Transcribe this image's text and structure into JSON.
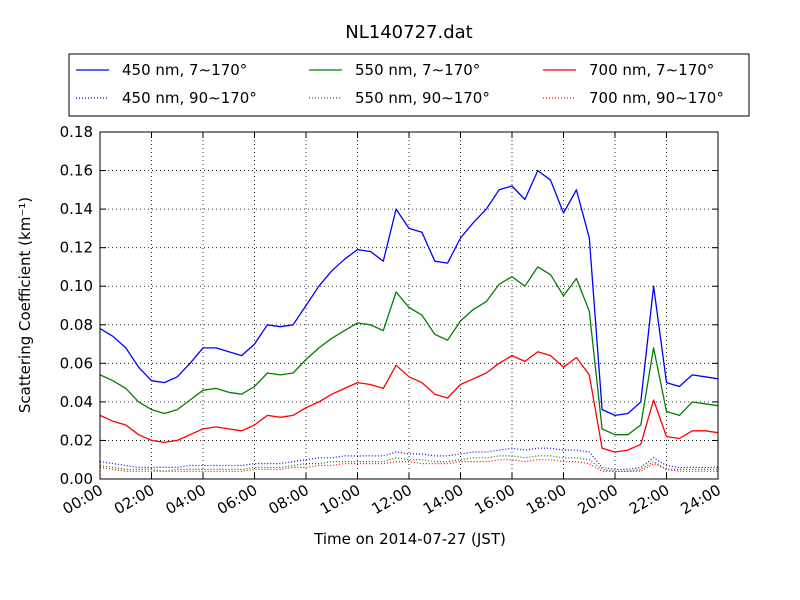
{
  "chart_data": {
    "type": "line",
    "title": "NL140727.dat",
    "xlabel": "Time on 2014-07-27 (JST)",
    "ylabel": "Scattering Coefficient (km⁻¹)",
    "xlim": [
      0,
      24
    ],
    "ylim": [
      0,
      0.18
    ],
    "grid": true,
    "legend_position": "top",
    "x_tick_labels": [
      "00:00",
      "02:00",
      "04:00",
      "06:00",
      "08:00",
      "10:00",
      "12:00",
      "14:00",
      "16:00",
      "18:00",
      "20:00",
      "22:00",
      "24:00"
    ],
    "y_tick_labels": [
      "0.00",
      "0.02",
      "0.04",
      "0.06",
      "0.08",
      "0.10",
      "0.12",
      "0.14",
      "0.16",
      "0.18"
    ],
    "x": [
      0,
      0.5,
      1,
      1.5,
      2,
      2.5,
      3,
      3.5,
      4,
      4.5,
      5,
      5.5,
      6,
      6.5,
      7,
      7.5,
      8,
      8.5,
      9,
      9.5,
      10,
      10.5,
      11,
      11.5,
      12,
      12.5,
      13,
      13.5,
      14,
      14.5,
      15,
      15.5,
      16,
      16.5,
      17,
      17.5,
      18,
      18.5,
      19,
      19.5,
      20,
      20.5,
      21,
      21.5,
      22,
      22.5,
      23,
      23.5,
      24
    ],
    "series": [
      {
        "name": "450 nm, 7∼170°",
        "color": "#0000ff",
        "style": "solid",
        "values": [
          0.078,
          0.074,
          0.068,
          0.058,
          0.051,
          0.05,
          0.053,
          0.06,
          0.068,
          0.068,
          0.066,
          0.064,
          0.07,
          0.08,
          0.079,
          0.08,
          0.09,
          0.1,
          0.108,
          0.114,
          0.119,
          0.118,
          0.113,
          0.14,
          0.13,
          0.128,
          0.113,
          0.112,
          0.125,
          0.133,
          0.14,
          0.15,
          0.152,
          0.145,
          0.16,
          0.155,
          0.138,
          0.15,
          0.125,
          0.036,
          0.033,
          0.034,
          0.04,
          0.1,
          0.05,
          0.048,
          0.054,
          0.053,
          0.052
        ]
      },
      {
        "name": "450 nm, 90∼170°",
        "color": "#0000ff",
        "style": "dotted",
        "values": [
          0.009,
          0.008,
          0.007,
          0.006,
          0.006,
          0.006,
          0.006,
          0.007,
          0.007,
          0.007,
          0.007,
          0.007,
          0.008,
          0.008,
          0.008,
          0.009,
          0.01,
          0.011,
          0.011,
          0.012,
          0.012,
          0.012,
          0.012,
          0.014,
          0.013,
          0.013,
          0.012,
          0.012,
          0.013,
          0.014,
          0.014,
          0.015,
          0.016,
          0.015,
          0.016,
          0.016,
          0.015,
          0.015,
          0.014,
          0.006,
          0.005,
          0.005,
          0.006,
          0.011,
          0.007,
          0.006,
          0.006,
          0.006,
          0.006
        ]
      },
      {
        "name": "550 nm, 7∼170°",
        "color": "#008000",
        "style": "solid",
        "values": [
          0.054,
          0.051,
          0.047,
          0.04,
          0.036,
          0.034,
          0.036,
          0.041,
          0.046,
          0.047,
          0.045,
          0.044,
          0.048,
          0.055,
          0.054,
          0.055,
          0.062,
          0.068,
          0.073,
          0.077,
          0.081,
          0.08,
          0.077,
          0.097,
          0.089,
          0.085,
          0.075,
          0.072,
          0.082,
          0.088,
          0.092,
          0.101,
          0.105,
          0.1,
          0.11,
          0.106,
          0.095,
          0.104,
          0.087,
          0.026,
          0.023,
          0.023,
          0.028,
          0.068,
          0.035,
          0.033,
          0.04,
          0.039,
          0.038
        ]
      },
      {
        "name": "550 nm, 90∼170°",
        "color": "#008000",
        "style": "dotted",
        "values": [
          0.007,
          0.006,
          0.005,
          0.005,
          0.005,
          0.004,
          0.005,
          0.005,
          0.005,
          0.005,
          0.005,
          0.005,
          0.006,
          0.006,
          0.006,
          0.007,
          0.008,
          0.008,
          0.009,
          0.009,
          0.009,
          0.009,
          0.009,
          0.011,
          0.01,
          0.01,
          0.009,
          0.009,
          0.01,
          0.011,
          0.011,
          0.012,
          0.012,
          0.011,
          0.012,
          0.012,
          0.011,
          0.011,
          0.01,
          0.005,
          0.004,
          0.004,
          0.005,
          0.009,
          0.005,
          0.005,
          0.005,
          0.005,
          0.005
        ]
      },
      {
        "name": "700 nm, 7∼170°",
        "color": "#ff0000",
        "style": "solid",
        "values": [
          0.033,
          0.03,
          0.028,
          0.023,
          0.02,
          0.019,
          0.02,
          0.023,
          0.026,
          0.027,
          0.026,
          0.025,
          0.028,
          0.033,
          0.032,
          0.033,
          0.037,
          0.04,
          0.044,
          0.047,
          0.05,
          0.049,
          0.047,
          0.059,
          0.053,
          0.05,
          0.044,
          0.042,
          0.049,
          0.052,
          0.055,
          0.06,
          0.064,
          0.061,
          0.066,
          0.064,
          0.058,
          0.063,
          0.054,
          0.016,
          0.014,
          0.015,
          0.018,
          0.041,
          0.022,
          0.021,
          0.025,
          0.025,
          0.024
        ]
      },
      {
        "name": "700 nm, 90∼170°",
        "color": "#ff0000",
        "style": "dotted",
        "values": [
          0.006,
          0.005,
          0.004,
          0.004,
          0.004,
          0.004,
          0.004,
          0.004,
          0.004,
          0.004,
          0.004,
          0.004,
          0.005,
          0.005,
          0.005,
          0.006,
          0.006,
          0.007,
          0.007,
          0.008,
          0.008,
          0.008,
          0.008,
          0.009,
          0.009,
          0.008,
          0.008,
          0.008,
          0.009,
          0.009,
          0.009,
          0.01,
          0.01,
          0.009,
          0.01,
          0.01,
          0.009,
          0.009,
          0.008,
          0.004,
          0.004,
          0.004,
          0.004,
          0.008,
          0.005,
          0.004,
          0.004,
          0.004,
          0.004
        ]
      }
    ]
  }
}
